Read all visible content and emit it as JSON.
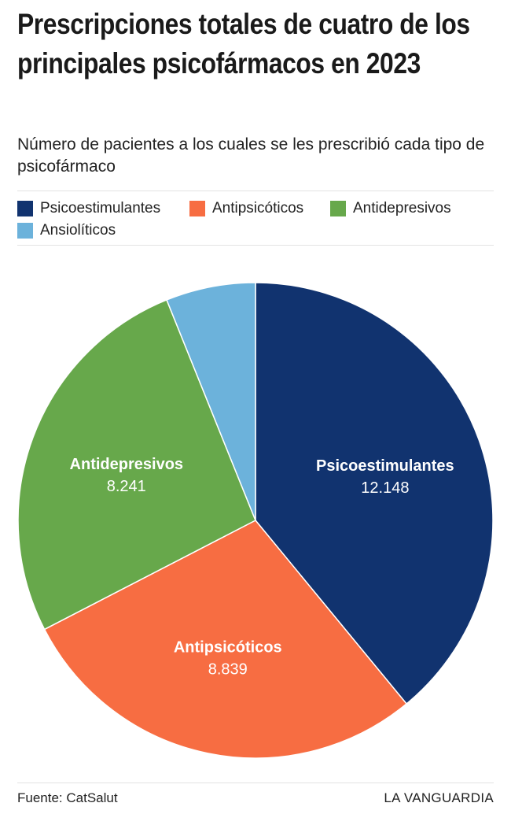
{
  "title": "Prescripciones totales de cuatro de los principales psicofármacos en 2023",
  "subtitle": "Número de pacientes a los cuales se les prescribió cada tipo de psicofármaco",
  "footer": {
    "source": "Fuente: CatSalut",
    "brand": "LA VANGUARDIA"
  },
  "chart_data": {
    "type": "pie",
    "title": "Prescripciones totales de cuatro de los principales psicofármacos en 2023",
    "subtitle": "Número de pacientes a los cuales se les prescribió cada tipo de psicofármaco",
    "legend_position": "top",
    "categories": [
      "Psicoestimulantes",
      "Antipsicóticos",
      "Antidepresivos",
      "Ansiolíticos"
    ],
    "values": [
      12148,
      8839,
      8241,
      1900
    ],
    "value_labels": [
      "12.148",
      "8.839",
      "8.241",
      ""
    ],
    "colors": [
      "#11336f",
      "#f76d42",
      "#67a84b",
      "#6cb2db"
    ]
  }
}
